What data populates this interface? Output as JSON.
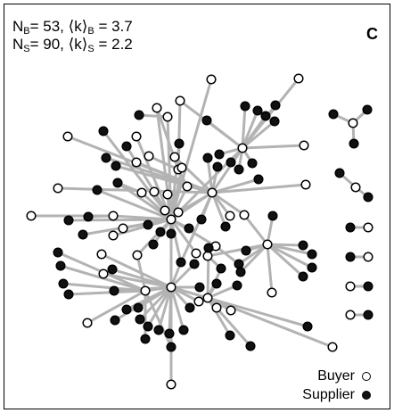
{
  "header": {
    "stat1_prefix": "N",
    "stat1_sub": "B",
    "stat1_mid": "= 53, ⟨k⟩",
    "stat1_sub2": "B",
    "stat1_end": " = 3.7",
    "stat2_prefix": "N",
    "stat2_sub": "S",
    "stat2_mid": "= 90, ⟨k⟩",
    "stat2_sub2": "S",
    "stat2_end": " = 2.2",
    "panel_letter": "C"
  },
  "legend": {
    "buyer_label": "Buyer",
    "supplier_label": "Supplier"
  },
  "colors": {
    "edge": "#b3b3b3",
    "buyer_fill": "#ffffff",
    "supplier_fill": "#111111",
    "outline": "#000000"
  }
}
